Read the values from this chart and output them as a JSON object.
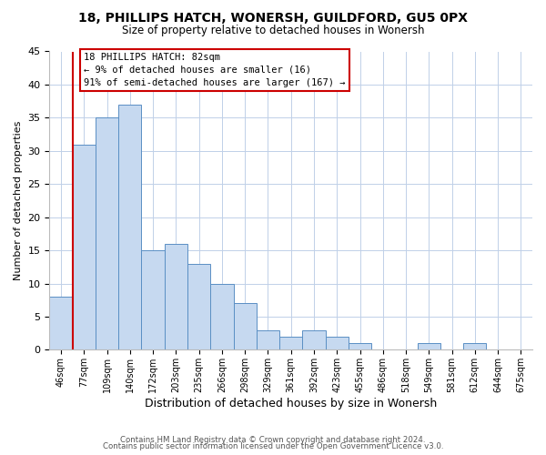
{
  "title": "18, PHILLIPS HATCH, WONERSH, GUILDFORD, GU5 0PX",
  "subtitle": "Size of property relative to detached houses in Wonersh",
  "xlabel": "Distribution of detached houses by size in Wonersh",
  "ylabel": "Number of detached properties",
  "bin_labels": [
    "46sqm",
    "77sqm",
    "109sqm",
    "140sqm",
    "172sqm",
    "203sqm",
    "235sqm",
    "266sqm",
    "298sqm",
    "329sqm",
    "361sqm",
    "392sqm",
    "423sqm",
    "455sqm",
    "486sqm",
    "518sqm",
    "549sqm",
    "581sqm",
    "612sqm",
    "644sqm",
    "675sqm"
  ],
  "bar_heights": [
    8,
    31,
    35,
    37,
    15,
    16,
    13,
    10,
    7,
    3,
    2,
    3,
    2,
    1,
    0,
    0,
    1,
    0,
    1,
    0,
    0
  ],
  "bar_color": "#c6d9f0",
  "bar_edge_color": "#5a8fc4",
  "red_line_index": 1,
  "ylim": [
    0,
    45
  ],
  "yticks": [
    0,
    5,
    10,
    15,
    20,
    25,
    30,
    35,
    40,
    45
  ],
  "annotation_title": "18 PHILLIPS HATCH: 82sqm",
  "annotation_line1": "← 9% of detached houses are smaller (16)",
  "annotation_line2": "91% of semi-detached houses are larger (167) →",
  "annotation_box_color": "#ffffff",
  "annotation_box_edge": "#cc0000",
  "footer_line1": "Contains HM Land Registry data © Crown copyright and database right 2024.",
  "footer_line2": "Contains public sector information licensed under the Open Government Licence v3.0.",
  "background_color": "#ffffff",
  "grid_color": "#c0d0e8"
}
